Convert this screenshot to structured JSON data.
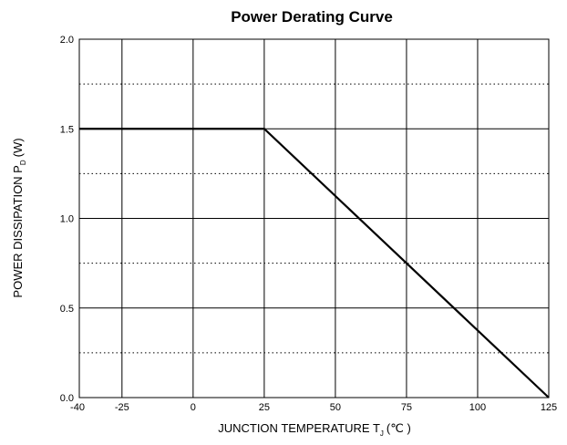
{
  "chart_data": {
    "type": "line",
    "title": "Power Derating Curve",
    "xlabel": {
      "main": "JUNCTION TEMPERATURE T",
      "sub": "J",
      "unit": "(℃ )"
    },
    "ylabel": {
      "main": "POWER DISSIPATION P",
      "sub": "D",
      "unit": "(W)"
    },
    "xlim": [
      -40,
      125
    ],
    "ylim": [
      0,
      2.0
    ],
    "x_ticks": [
      -40,
      -25,
      0,
      25,
      50,
      75,
      100,
      125
    ],
    "x_tick_labels": [
      "-40",
      "-25",
      "0",
      "25",
      "50",
      "75",
      "100",
      "125"
    ],
    "y_ticks": [
      0,
      0.5,
      1.0,
      1.5,
      2.0
    ],
    "y_tick_labels": [
      "0.0",
      "0.5",
      "1.0",
      "1.5",
      "2.0"
    ],
    "y_minor_dotted": [
      0.25,
      0.75,
      1.25,
      1.75
    ],
    "grid": true,
    "legend": "none",
    "line_color": "#000000",
    "series": [
      {
        "x": [
          -40,
          25,
          125
        ],
        "y": [
          1.5,
          1.5,
          0.0
        ]
      }
    ]
  }
}
